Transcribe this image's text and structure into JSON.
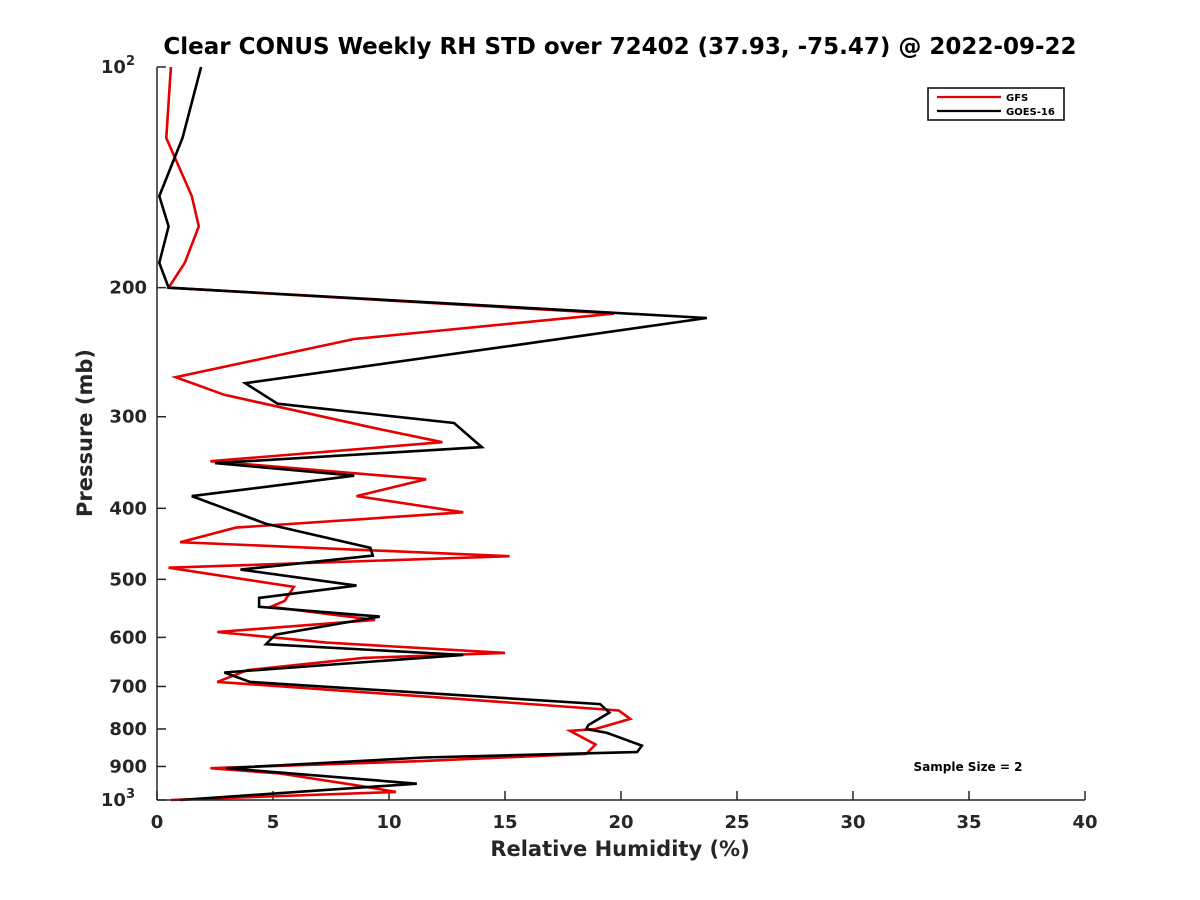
{
  "chart_data": {
    "type": "line",
    "title": "Clear CONUS Weekly RH STD over 72402 (37.93, -75.47) @ 2022-09-22",
    "xlabel": "Relative Humidity (%)",
    "ylabel": "Pressure (mb)",
    "xlim": [
      0,
      40
    ],
    "ylim": [
      100,
      1000
    ],
    "y_scale": "log",
    "y_reversed": true,
    "x_ticks": [
      0,
      5,
      10,
      15,
      20,
      25,
      30,
      35,
      40
    ],
    "x_tick_labels": [
      "0",
      "5",
      "10",
      "15",
      "20",
      "25",
      "30",
      "35",
      "40"
    ],
    "y_ticks": [
      100,
      200,
      300,
      400,
      500,
      600,
      700,
      800,
      900,
      1000
    ],
    "y_tick_labels": [
      {
        "base": "10",
        "exp": "2"
      },
      {
        "base": "200",
        "exp": ""
      },
      {
        "base": "300",
        "exp": ""
      },
      {
        "base": "400",
        "exp": ""
      },
      {
        "base": "500",
        "exp": ""
      },
      {
        "base": "600",
        "exp": ""
      },
      {
        "base": "700",
        "exp": ""
      },
      {
        "base": "800",
        "exp": ""
      },
      {
        "base": "900",
        "exp": ""
      },
      {
        "base": "10",
        "exp": "3"
      }
    ],
    "legend_position": "top-right",
    "annotation": "Sample Size = 2",
    "series": [
      {
        "name": "GFS",
        "color": "#e60000",
        "points": [
          [
            0.6,
            100
          ],
          [
            0.4,
            125
          ],
          [
            1.5,
            150
          ],
          [
            1.8,
            165
          ],
          [
            1.2,
            185
          ],
          [
            0.5,
            200
          ],
          [
            19.7,
            217
          ],
          [
            8.5,
            235
          ],
          [
            0.8,
            265
          ],
          [
            2.9,
            280
          ],
          [
            9.2,
            310
          ],
          [
            12.3,
            325
          ],
          [
            2.3,
            345
          ],
          [
            11.6,
            365
          ],
          [
            8.6,
            385
          ],
          [
            13.2,
            405
          ],
          [
            3.4,
            425
          ],
          [
            1.0,
            445
          ],
          [
            15.2,
            465
          ],
          [
            0.5,
            482
          ],
          [
            5.9,
            512
          ],
          [
            5.5,
            535
          ],
          [
            4.9,
            545
          ],
          [
            9.4,
            568
          ],
          [
            2.6,
            590
          ],
          [
            7.3,
            610
          ],
          [
            15.0,
            630
          ],
          [
            8.9,
            640
          ],
          [
            3.9,
            665
          ],
          [
            2.6,
            690
          ],
          [
            12.2,
            725
          ],
          [
            19.9,
            755
          ],
          [
            20.4,
            775
          ],
          [
            18.9,
            800
          ],
          [
            17.8,
            805
          ],
          [
            18.9,
            840
          ],
          [
            18.5,
            865
          ],
          [
            11.4,
            885
          ],
          [
            2.3,
            905
          ],
          [
            5.3,
            920
          ],
          [
            8.6,
            955
          ],
          [
            10.3,
            975
          ],
          [
            0.6,
            1000
          ]
        ]
      },
      {
        "name": "GOES-16",
        "color": "#000000",
        "points": [
          [
            1.9,
            100
          ],
          [
            1.1,
            125
          ],
          [
            0.1,
            150
          ],
          [
            0.5,
            165
          ],
          [
            0.1,
            185
          ],
          [
            0.5,
            200
          ],
          [
            23.7,
            220
          ],
          [
            15.3,
            240
          ],
          [
            3.8,
            270
          ],
          [
            5.2,
            288
          ],
          [
            12.8,
            306
          ],
          [
            14.0,
            330
          ],
          [
            2.5,
            347
          ],
          [
            8.5,
            361
          ],
          [
            1.5,
            385
          ],
          [
            4.7,
            420
          ],
          [
            9.2,
            453
          ],
          [
            9.3,
            464
          ],
          [
            3.6,
            485
          ],
          [
            8.6,
            510
          ],
          [
            4.4,
            530
          ],
          [
            4.4,
            545
          ],
          [
            9.6,
            562
          ],
          [
            5.1,
            595
          ],
          [
            4.7,
            613
          ],
          [
            13.2,
            634
          ],
          [
            2.9,
            670
          ],
          [
            4.0,
            690
          ],
          [
            19.1,
            740
          ],
          [
            19.5,
            760
          ],
          [
            18.6,
            790
          ],
          [
            18.5,
            800
          ],
          [
            19.4,
            810
          ],
          [
            20.9,
            843
          ],
          [
            20.7,
            860
          ],
          [
            11.5,
            875
          ],
          [
            3.0,
            905
          ],
          [
            11.2,
            950
          ],
          [
            1.0,
            1000
          ]
        ]
      }
    ]
  }
}
